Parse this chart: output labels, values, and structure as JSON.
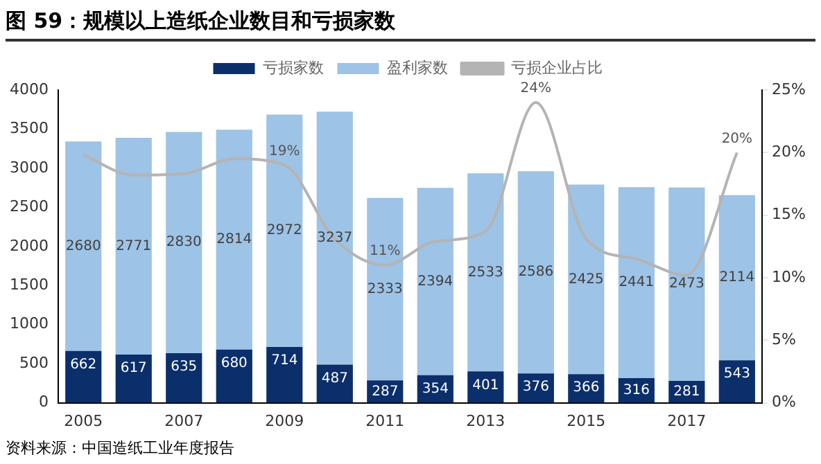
{
  "chart_data": {
    "type": "bar",
    "title": "图 59：规模以上造纸企业数目和亏损家数",
    "stacked": true,
    "categories": [
      "2005",
      null,
      "2007",
      null,
      "2009",
      null,
      "2011",
      null,
      "2013",
      null,
      "2015",
      null,
      "2017",
      null
    ],
    "series": [
      {
        "name": "亏损家数",
        "color": "#0b2f6b",
        "values": [
          662,
          617,
          635,
          680,
          714,
          487,
          287,
          354,
          401,
          376,
          366,
          316,
          281,
          543
        ],
        "value_labels": [
          "662",
          "617",
          "635",
          "680",
          "714",
          "487",
          "287",
          "354",
          "401",
          "376",
          "366",
          "316",
          "281",
          "543"
        ]
      },
      {
        "name": "盈利家数",
        "color": "#9dc3e6",
        "values": [
          2680,
          2771,
          2830,
          2814,
          2972,
          3237,
          2333,
          2394,
          2533,
          2586,
          2425,
          2441,
          2473,
          2114
        ],
        "value_labels": [
          "2680",
          "2771",
          "2830",
          "2814",
          "2972",
          "3237",
          "2333",
          "2394",
          "2533",
          "2586",
          "2425",
          "2441",
          "2473",
          "2114"
        ]
      },
      {
        "name": "亏损企业占比",
        "type": "line",
        "axis": "y2",
        "color": "#b4b4b4",
        "values": [
          19.8,
          18.2,
          18.3,
          19.5,
          19,
          13.1,
          11,
          12.9,
          13.7,
          24,
          13.1,
          11.5,
          10.2,
          20
        ],
        "value_labels": [
          null,
          null,
          null,
          null,
          "19%",
          null,
          "11%",
          null,
          null,
          "24%",
          null,
          null,
          null,
          "20%"
        ]
      }
    ],
    "ylim": [
      0,
      4000
    ],
    "yticks": [
      0,
      500,
      1000,
      1500,
      2000,
      2500,
      3000,
      3500,
      4000
    ],
    "y2lim": [
      0,
      25
    ],
    "y2ticks": [
      {
        "value": 0,
        "label": "0%"
      },
      {
        "value": 5,
        "label": "5%"
      },
      {
        "value": 10,
        "label": "10%"
      },
      {
        "value": 15,
        "label": "15%"
      },
      {
        "value": 20,
        "label": "20%"
      },
      {
        "value": 25,
        "label": "25%"
      }
    ],
    "grid": false,
    "legend": "top",
    "marker": "none",
    "annotations": [
      "资料来源：中国造纸工业年度报告"
    ]
  }
}
